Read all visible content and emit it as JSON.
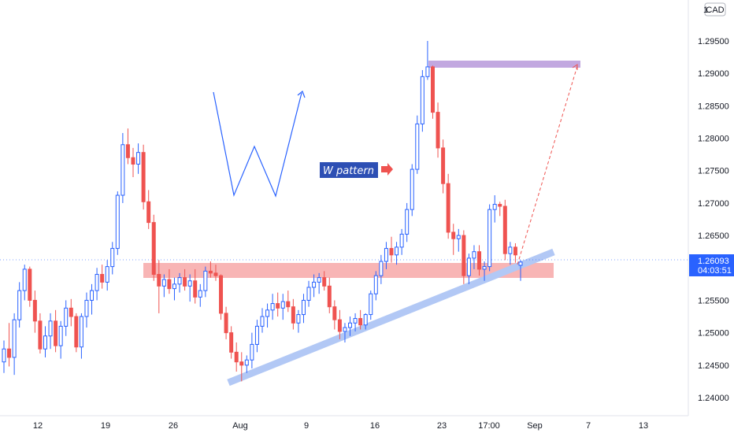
{
  "chart_data": {
    "type": "candlestick",
    "currency_badge": "CAD",
    "y_axis_ticks": [
      "1.29500",
      "1.29000",
      "1.28500",
      "1.28000",
      "1.27500",
      "1.27000",
      "1.26500",
      "1.26000",
      "1.25500",
      "1.25000",
      "1.24500",
      "1.24000"
    ],
    "y_axis_tick_values": [
      1.295,
      1.29,
      1.285,
      1.28,
      1.275,
      1.27,
      1.265,
      1.26,
      1.255,
      1.25,
      1.245,
      1.24
    ],
    "x_axis_ticks": [
      "12",
      "19",
      "26",
      "Aug",
      "9",
      "16",
      "23",
      "17:00",
      "Sep",
      "7",
      "13"
    ],
    "last_price": "1.26093",
    "countdown": "04:03:51",
    "annotation_label": "W pattern",
    "colors": {
      "up": "#2962ff",
      "down": "#ef5350",
      "support_zone": "#f7a8a8",
      "trendline": "#b2c8f5",
      "target_zone": "#c2a8e0",
      "target_arrow": "#ef5350",
      "w_drawing": "#2962ff",
      "label_bg": "#2d4fb4"
    },
    "candles": [
      [
        1.2455,
        1.2488,
        1.2438,
        1.2475
      ],
      [
        1.2475,
        1.2515,
        1.2448,
        1.2462
      ],
      [
        1.2462,
        1.253,
        1.2435,
        1.252
      ],
      [
        1.252,
        1.2578,
        1.2508,
        1.2565
      ],
      [
        1.2565,
        1.2605,
        1.255,
        1.2598
      ],
      [
        1.2598,
        1.2602,
        1.254,
        1.255
      ],
      [
        1.255,
        1.2565,
        1.25,
        1.2518
      ],
      [
        1.2518,
        1.253,
        1.2468,
        1.2475
      ],
      [
        1.2475,
        1.251,
        1.2462,
        1.2495
      ],
      [
        1.2495,
        1.253,
        1.2475,
        1.2518
      ],
      [
        1.2518,
        1.2535,
        1.247,
        1.248
      ],
      [
        1.248,
        1.2518,
        1.246,
        1.251
      ],
      [
        1.251,
        1.255,
        1.2495,
        1.2538
      ],
      [
        1.2538,
        1.2552,
        1.251,
        1.2525
      ],
      [
        1.2525,
        1.253,
        1.247,
        1.2478
      ],
      [
        1.2478,
        1.253,
        1.246,
        1.2525
      ],
      [
        1.2525,
        1.2562,
        1.2508,
        1.255
      ],
      [
        1.255,
        1.2575,
        1.2528,
        1.2565
      ],
      [
        1.2565,
        1.26,
        1.255,
        1.259
      ],
      [
        1.259,
        1.2605,
        1.2568,
        1.2578
      ],
      [
        1.2578,
        1.2612,
        1.2565,
        1.2602
      ],
      [
        1.2602,
        1.264,
        1.259,
        1.263
      ],
      [
        1.263,
        1.2718,
        1.262,
        1.2712
      ],
      [
        1.2712,
        1.2808,
        1.27,
        1.279
      ],
      [
        1.279,
        1.2815,
        1.276,
        1.277
      ],
      [
        1.277,
        1.2785,
        1.274,
        1.276
      ],
      [
        1.276,
        1.2792,
        1.2745,
        1.2778
      ],
      [
        1.2778,
        1.279,
        1.269,
        1.2702
      ],
      [
        1.2702,
        1.272,
        1.266,
        1.267
      ],
      [
        1.267,
        1.2682,
        1.258,
        1.259
      ],
      [
        1.259,
        1.2612,
        1.253,
        1.2572
      ],
      [
        1.2572,
        1.259,
        1.2555,
        1.2582
      ],
      [
        1.2582,
        1.2598,
        1.256,
        1.2568
      ],
      [
        1.2568,
        1.2585,
        1.255,
        1.2575
      ],
      [
        1.2575,
        1.2592,
        1.2562,
        1.2585
      ],
      [
        1.2585,
        1.2598,
        1.2565,
        1.2572
      ],
      [
        1.2572,
        1.259,
        1.2548,
        1.258
      ],
      [
        1.258,
        1.2598,
        1.2545,
        1.2555
      ],
      [
        1.2555,
        1.2575,
        1.254,
        1.2565
      ],
      [
        1.2565,
        1.2602,
        1.2555,
        1.2595
      ],
      [
        1.2595,
        1.261,
        1.2585,
        1.2592
      ],
      [
        1.2592,
        1.2605,
        1.258,
        1.2588
      ],
      [
        1.2588,
        1.259,
        1.252,
        1.253
      ],
      [
        1.253,
        1.254,
        1.249,
        1.25
      ],
      [
        1.25,
        1.251,
        1.246,
        1.247
      ],
      [
        1.247,
        1.2485,
        1.244,
        1.2455
      ],
      [
        1.2455,
        1.247,
        1.2425,
        1.245
      ],
      [
        1.245,
        1.2465,
        1.2438,
        1.2458
      ],
      [
        1.2458,
        1.25,
        1.2445,
        1.2482
      ],
      [
        1.2482,
        1.252,
        1.247,
        1.251
      ],
      [
        1.251,
        1.2538,
        1.25,
        1.2525
      ],
      [
        1.2525,
        1.2545,
        1.2508,
        1.2535
      ],
      [
        1.2535,
        1.256,
        1.252,
        1.2545
      ],
      [
        1.2545,
        1.2562,
        1.2525,
        1.2538
      ],
      [
        1.2538,
        1.256,
        1.252,
        1.2548
      ],
      [
        1.2548,
        1.2565,
        1.2532,
        1.254
      ],
      [
        1.254,
        1.2552,
        1.2505,
        1.2515
      ],
      [
        1.2515,
        1.2535,
        1.25,
        1.2528
      ],
      [
        1.2528,
        1.256,
        1.2515,
        1.255
      ],
      [
        1.255,
        1.258,
        1.254,
        1.257
      ],
      [
        1.257,
        1.259,
        1.2555,
        1.2578
      ],
      [
        1.2578,
        1.2592,
        1.256,
        1.2585
      ],
      [
        1.2585,
        1.2595,
        1.2565,
        1.2572
      ],
      [
        1.2572,
        1.2585,
        1.253,
        1.254
      ],
      [
        1.254,
        1.255,
        1.2505,
        1.252
      ],
      [
        1.252,
        1.2535,
        1.249,
        1.2502
      ],
      [
        1.2502,
        1.2515,
        1.2485,
        1.2508
      ],
      [
        1.2508,
        1.2525,
        1.2495,
        1.2515
      ],
      [
        1.2515,
        1.253,
        1.2502,
        1.2522
      ],
      [
        1.2522,
        1.2535,
        1.2505,
        1.2512
      ],
      [
        1.2512,
        1.253,
        1.2505,
        1.2528
      ],
      [
        1.2528,
        1.2565,
        1.252,
        1.256
      ],
      [
        1.256,
        1.2595,
        1.255,
        1.2588
      ],
      [
        1.2588,
        1.262,
        1.2575,
        1.261
      ],
      [
        1.261,
        1.264,
        1.2598,
        1.263
      ],
      [
        1.263,
        1.2648,
        1.2608,
        1.262
      ],
      [
        1.262,
        1.264,
        1.2605,
        1.2632
      ],
      [
        1.2632,
        1.266,
        1.262,
        1.2652
      ],
      [
        1.2652,
        1.27,
        1.264,
        1.269
      ],
      [
        1.269,
        1.276,
        1.268,
        1.2752
      ],
      [
        1.2752,
        1.2835,
        1.2745,
        1.2822
      ],
      [
        1.2822,
        1.2905,
        1.281,
        1.2895
      ],
      [
        1.2895,
        1.295,
        1.289,
        1.291
      ],
      [
        1.291,
        1.2912,
        1.283,
        1.284
      ],
      [
        1.284,
        1.2855,
        1.277,
        1.2785
      ],
      [
        1.2785,
        1.2798,
        1.2715,
        1.273
      ],
      [
        1.273,
        1.2745,
        1.2645,
        1.2655
      ],
      [
        1.2655,
        1.2668,
        1.262,
        1.2645
      ],
      [
        1.2645,
        1.266,
        1.2625,
        1.265
      ],
      [
        1.265,
        1.2658,
        1.2575,
        1.2588
      ],
      [
        1.2588,
        1.2622,
        1.2575,
        1.2615
      ],
      [
        1.2615,
        1.2635,
        1.2598,
        1.2625
      ],
      [
        1.2625,
        1.2635,
        1.2588,
        1.2598
      ],
      [
        1.2598,
        1.261,
        1.258,
        1.2602
      ],
      [
        1.2602,
        1.2698,
        1.2595,
        1.269
      ],
      [
        1.269,
        1.2712,
        1.267,
        1.2698
      ],
      [
        1.2698,
        1.2702,
        1.268,
        1.2695
      ],
      [
        1.2695,
        1.2705,
        1.2612,
        1.2622
      ],
      [
        1.2622,
        1.264,
        1.2605,
        1.2632
      ],
      [
        1.2632,
        1.2638,
        1.2608,
        1.262
      ],
      [
        1.2604,
        1.2612,
        1.258,
        1.2609
      ]
    ]
  }
}
